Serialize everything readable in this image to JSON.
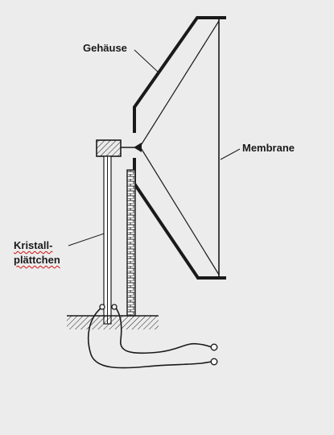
{
  "labels": {
    "housing": "Gehäuse",
    "membrane": "Membrane",
    "crystal_line1": "Kristall-",
    "crystal_line2": "plättchen"
  },
  "colors": {
    "background": "#ececec",
    "stroke": "#1a1a1a",
    "spellcheck_underline": "#d01010"
  }
}
